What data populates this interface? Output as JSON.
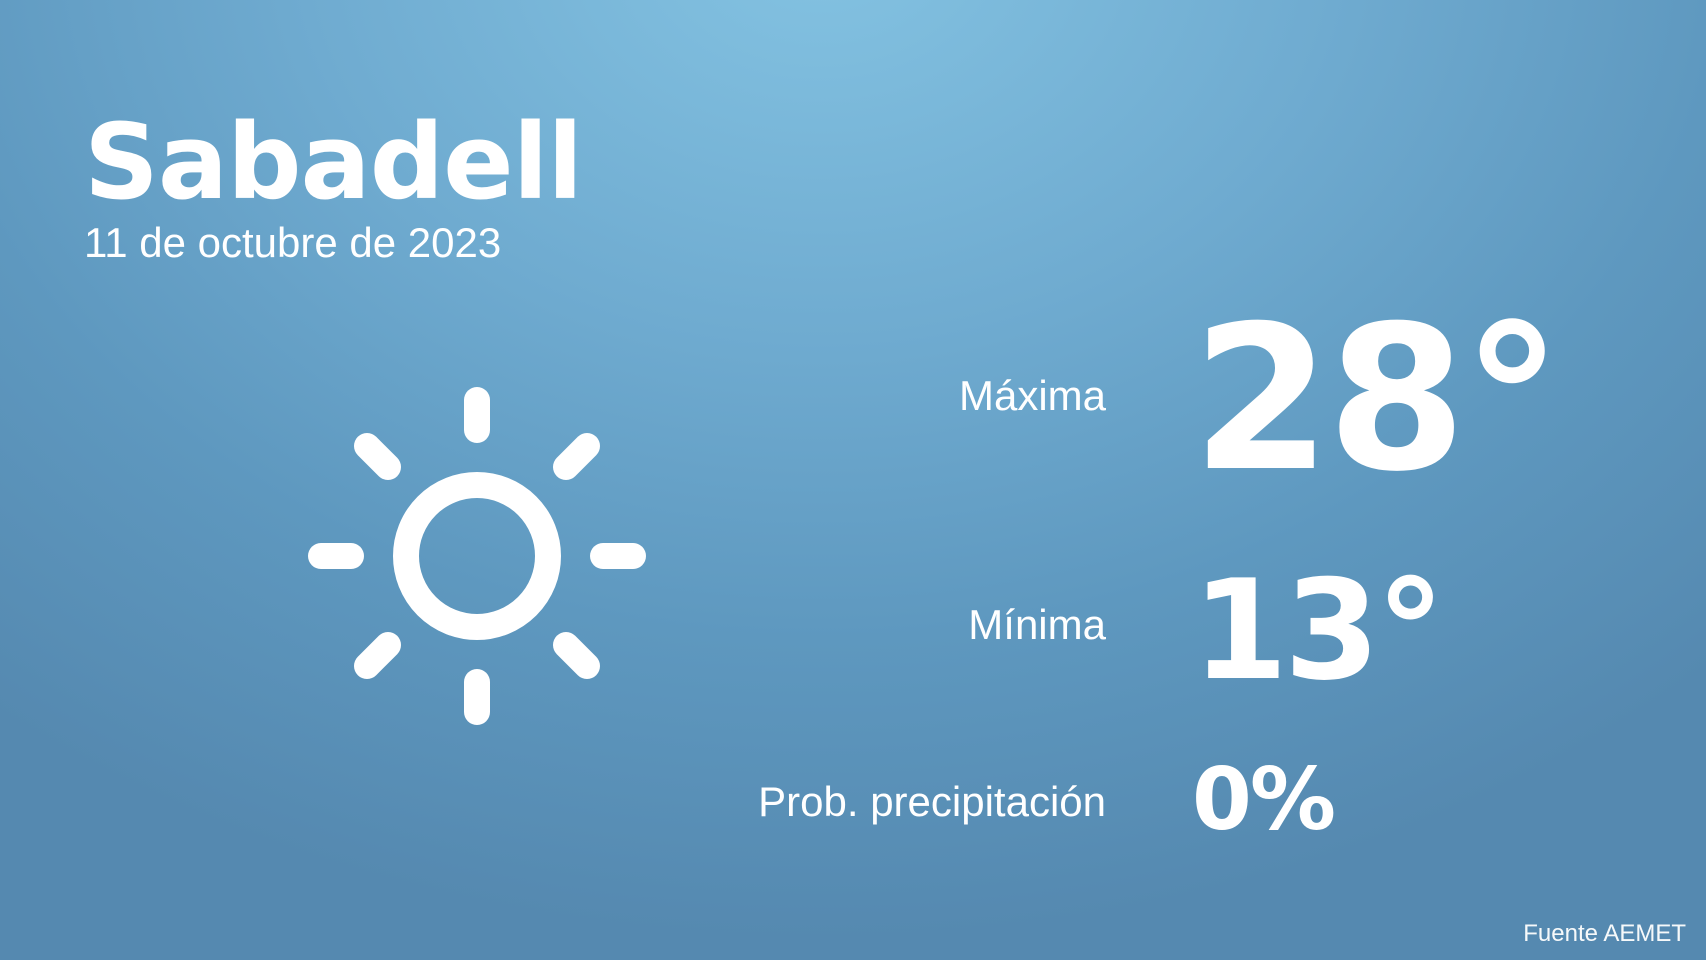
{
  "city": "Sabadell",
  "date": "11 de octubre de 2023",
  "icon": "sun-icon",
  "max": {
    "label": "Máxima",
    "value": "28°"
  },
  "min": {
    "label": "Mínima",
    "value": "13°"
  },
  "precip": {
    "label": "Prob. precipitación",
    "value": "0%"
  },
  "source": "Fuente AEMET",
  "colors": {
    "bg_top": "#84c3e2",
    "bg_bottom": "#5589b0",
    "text": "#ffffff"
  }
}
